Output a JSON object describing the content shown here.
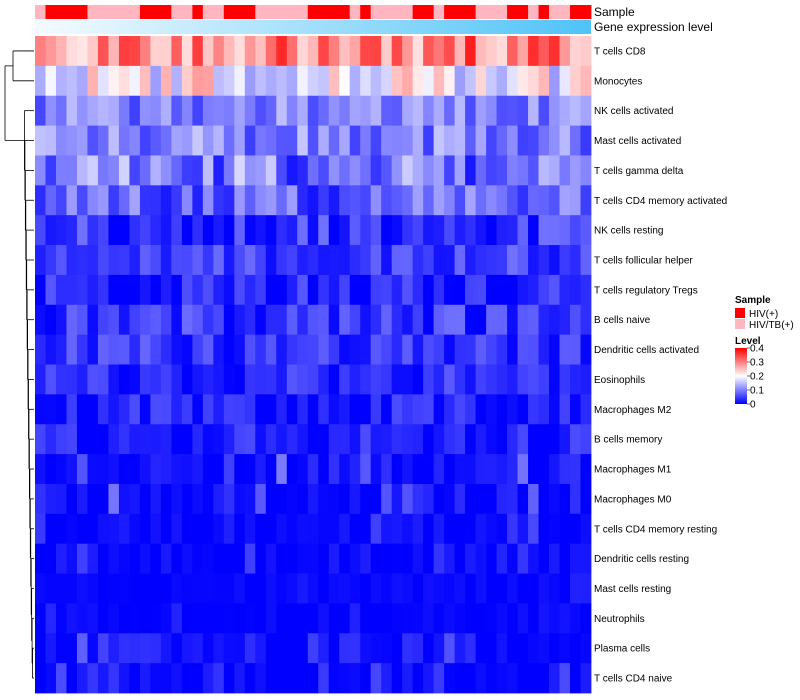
{
  "chart_data": {
    "type": "heatmap",
    "title": "",
    "annotation_tracks": [
      {
        "label": "Sample",
        "kind": "categorical"
      },
      {
        "label": "Gene expression level",
        "kind": "gradient",
        "colors": [
          "#f5fbff",
          "#4fc3f7"
        ]
      }
    ],
    "sample_groups": [
      {
        "name": "HIV(+)",
        "color": "#ff0000"
      },
      {
        "name": "HIV/TB(+)",
        "color": "#ffb6c1"
      }
    ],
    "sample_sequence": "10000111110001101100011111000010111100100011100101100",
    "n_columns": 53,
    "rows": [
      {
        "label": "T cells CD8",
        "base": 0.3,
        "spread": 0.08
      },
      {
        "label": "Monocytes",
        "base": 0.2,
        "spread": 0.08
      },
      {
        "label": "NK cells activated",
        "base": 0.1,
        "spread": 0.05
      },
      {
        "label": "Mast cells activated",
        "base": 0.1,
        "spread": 0.06
      },
      {
        "label": "T cells gamma delta",
        "base": 0.09,
        "spread": 0.08
      },
      {
        "label": "T cells CD4 memory activated",
        "base": 0.07,
        "spread": 0.06
      },
      {
        "label": "NK cells resting",
        "base": 0.04,
        "spread": 0.05
      },
      {
        "label": "T cells follicular helper",
        "base": 0.05,
        "spread": 0.04
      },
      {
        "label": "T cells regulatory  Tregs",
        "base": 0.03,
        "spread": 0.04
      },
      {
        "label": "B cells naive",
        "base": 0.04,
        "spread": 0.05
      },
      {
        "label": "Dendritic cells activated",
        "base": 0.04,
        "spread": 0.04
      },
      {
        "label": "Eosinophils",
        "base": 0.03,
        "spread": 0.04
      },
      {
        "label": "Macrophages M2",
        "base": 0.02,
        "spread": 0.04
      },
      {
        "label": "B cells memory",
        "base": 0.02,
        "spread": 0.04
      },
      {
        "label": "Macrophages M1",
        "base": 0.01,
        "spread": 0.03
      },
      {
        "label": "Macrophages M0",
        "base": 0.01,
        "spread": 0.03
      },
      {
        "label": "T cells CD4 memory resting",
        "base": 0.005,
        "spread": 0.02
      },
      {
        "label": "Dendritic cells resting",
        "base": 0.005,
        "spread": 0.02
      },
      {
        "label": "Mast cells resting",
        "base": 0.003,
        "spread": 0.01
      },
      {
        "label": "Neutrophils",
        "base": 0.003,
        "spread": 0.01
      },
      {
        "label": "Plasma cells",
        "base": 0.01,
        "spread": 0.03
      },
      {
        "label": "T cells CD4 naive",
        "base": 0.005,
        "spread": 0.02
      }
    ],
    "dendrogram_merges": [
      [
        2,
        3,
        0.12
      ],
      [
        7,
        8,
        0.15
      ],
      [
        9,
        10,
        0.12
      ],
      [
        18,
        19,
        0.05
      ],
      [
        4,
        5,
        0.18
      ],
      [
        11,
        12,
        0.12
      ],
      [
        14,
        15,
        0.1
      ],
      [
        16,
        17,
        0.1
      ],
      [
        20,
        21,
        0.12
      ],
      [
        6,
        "7-8",
        0.22
      ]
    ],
    "legend": {
      "sample_title": "Sample",
      "level_title": "Level",
      "level_ticks": [
        0,
        0.1,
        0.2,
        0.3,
        0.4
      ],
      "level_tick_labels": [
        "0",
        "0.1",
        "0.2",
        "0.3",
        "0.4"
      ],
      "position": "right"
    },
    "color_scale": {
      "min": 0,
      "mid": 0.2,
      "max": 0.4,
      "low": "#0000ff",
      "midColor": "#ffffff",
      "high": "#ff0000"
    }
  }
}
